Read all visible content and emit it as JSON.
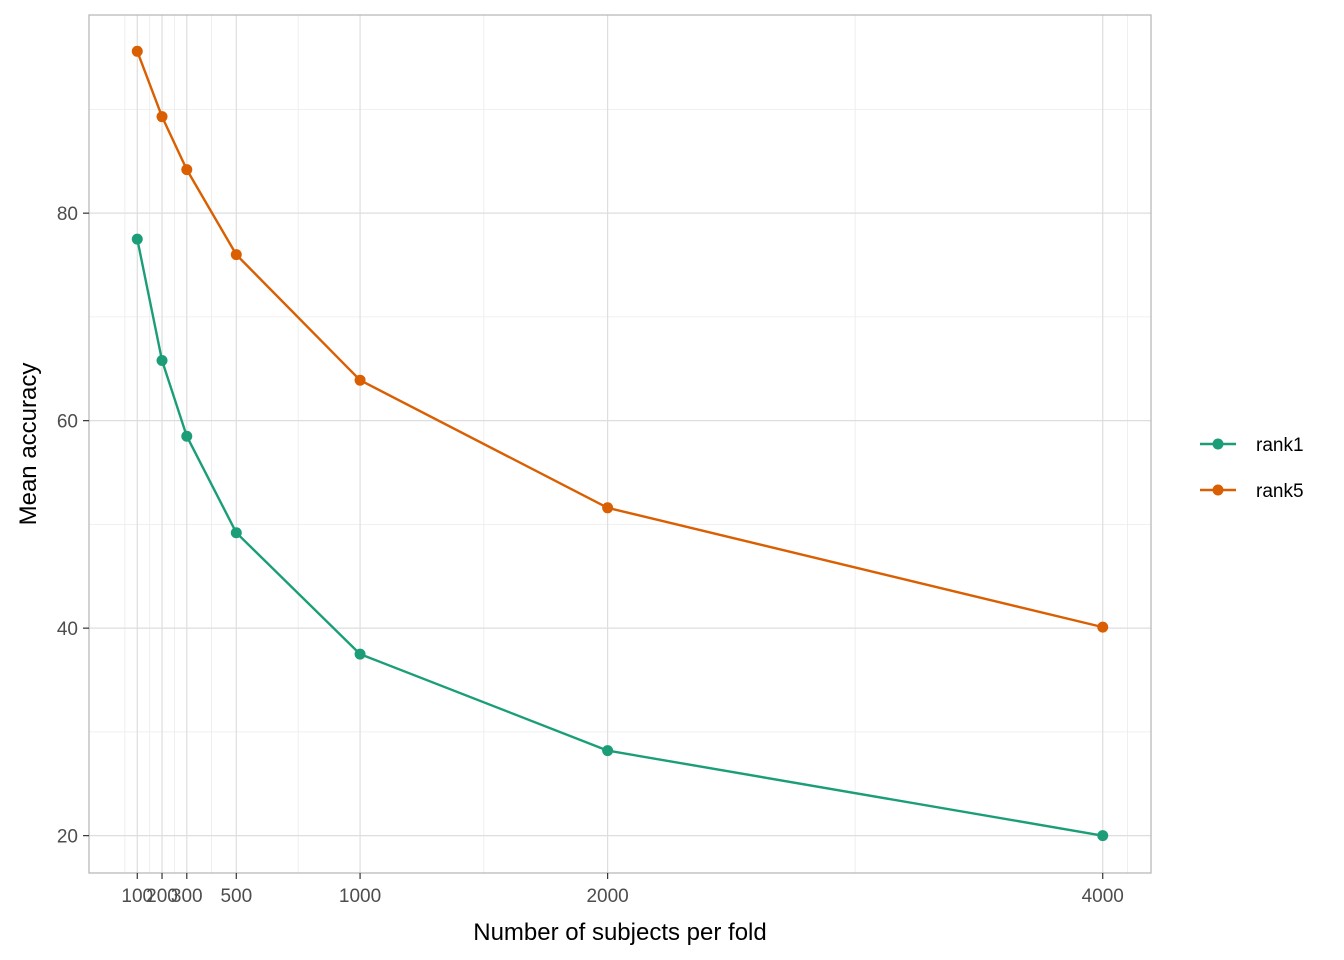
{
  "chart_data": {
    "type": "line",
    "title": "",
    "xlabel": "Number of subjects per fold",
    "ylabel": "Mean accuracy",
    "x": [
      100,
      200,
      300,
      500,
      1000,
      2000,
      4000
    ],
    "x_tick_labels": [
      "100",
      "200",
      "300",
      "500",
      "1000",
      "2000",
      "4000"
    ],
    "y_tick_labels": [
      "20",
      "40",
      "60",
      "80"
    ],
    "y_ticks": [
      20,
      40,
      60,
      80
    ],
    "x_minor_gridlines": [
      50,
      150,
      250,
      400,
      750,
      1500,
      3000,
      4100
    ],
    "y_minor_gridlines": [
      30,
      50,
      70,
      90
    ],
    "xlim": [
      -95,
      4195
    ],
    "ylim": [
      16.4,
      99.1
    ],
    "grid": true,
    "legend_position": "right",
    "series": [
      {
        "name": "rank1",
        "color": "#1b9e77",
        "values": [
          77.5,
          65.8,
          58.5,
          49.2,
          37.5,
          28.2,
          20.0
        ]
      },
      {
        "name": "rank5",
        "color": "#d95f02",
        "values": [
          95.6,
          89.3,
          84.2,
          76.0,
          63.9,
          51.6,
          40.1
        ]
      }
    ]
  }
}
